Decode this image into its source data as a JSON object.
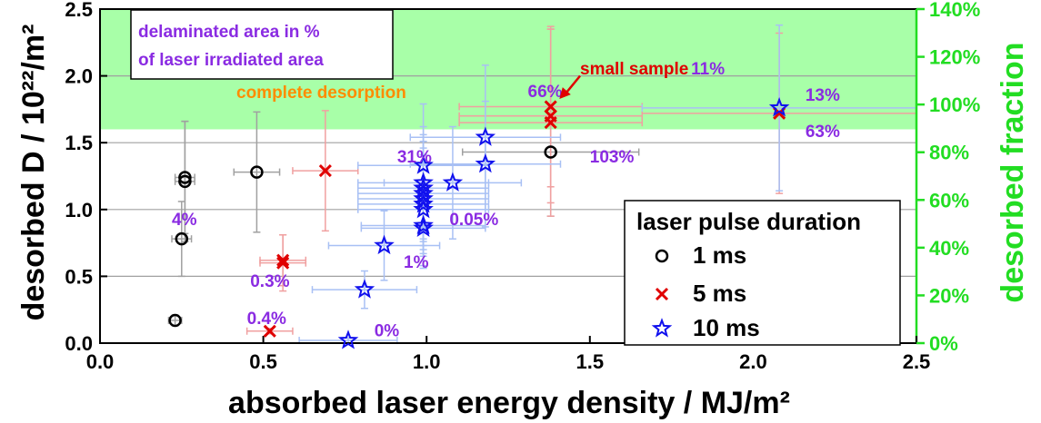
{
  "chart_data": {
    "type": "scatter",
    "xlabel": "absorbed laser energy density / MJ/m²",
    "ylabel": "desorbed D / 10²²/m²",
    "y2label": "desorbed fraction",
    "xlim": [
      0,
      2.5
    ],
    "ylim": [
      0,
      2.5
    ],
    "y2lim": [
      0,
      1.4
    ],
    "x_ticks": [
      "0.0",
      "0.5",
      "1.0",
      "1.5",
      "2.0",
      "2.5"
    ],
    "y_ticks": [
      "0.0",
      "0.5",
      "1.0",
      "1.5",
      "2.0",
      "2.5"
    ],
    "y2_ticks": [
      "0%",
      "20%",
      "40%",
      "60%",
      "80%",
      "100%",
      "120%",
      "140%"
    ],
    "grid": "horizontal",
    "shaded_band": {
      "ymin": 1.6,
      "ymax": 2.5,
      "label": "complete desorption",
      "color": "#a8ffa8"
    },
    "colors": {
      "1 ms": "#000000",
      "5 ms": "#e00000",
      "10 ms": "#1010ee",
      "fraction_axis": "#22dd22",
      "labels": "#8a2be2",
      "desorption_label": "#ff8c00"
    },
    "box_text": [
      "delaminated area in %",
      "of laser irradiated area"
    ],
    "legend": {
      "title": "laser pulse duration",
      "position": "bottom-right",
      "entries": [
        "1 ms",
        "5 ms",
        "10 ms"
      ]
    },
    "series": [
      {
        "name": "1 ms",
        "marker": "circle",
        "points": [
          {
            "x": 0.23,
            "y": 0.17,
            "xerr": 0.02,
            "yerr": 0.04
          },
          {
            "x": 0.25,
            "y": 0.78,
            "xerr": 0.03,
            "yerr": 0.28
          },
          {
            "x": 0.26,
            "y": 1.21,
            "xerr": 0.03,
            "yerr": 0.45
          },
          {
            "x": 0.26,
            "y": 1.24,
            "xerr": 0.03,
            "yerr": 0.42
          },
          {
            "x": 0.48,
            "y": 1.28,
            "xerr": 0.07,
            "yerr": 0.45
          },
          {
            "x": 1.38,
            "y": 1.43,
            "xerr": 0.27,
            "yerr": 0.48
          }
        ]
      },
      {
        "name": "5 ms",
        "marker": "x",
        "points": [
          {
            "x": 0.52,
            "y": 0.09,
            "xerr": 0.07,
            "yerr": 0.02
          },
          {
            "x": 0.56,
            "y": 0.6,
            "xerr": 0.07,
            "yerr": 0.21
          },
          {
            "x": 0.56,
            "y": 0.62,
            "xerr": 0.07,
            "yerr": 0.19
          },
          {
            "x": 0.69,
            "y": 1.29,
            "xerr": 0.1,
            "yerr": 0.45
          },
          {
            "x": 1.38,
            "y": 1.65,
            "xerr": 0.28,
            "yerr": 0.7
          },
          {
            "x": 1.38,
            "y": 1.7,
            "xerr": 0.28,
            "yerr": 0.65
          },
          {
            "x": 1.38,
            "y": 1.77,
            "xerr": 0.28,
            "yerr": 0.6
          },
          {
            "x": 2.08,
            "y": 1.72,
            "xerr": 0.42,
            "yerr": 0.6
          }
        ]
      },
      {
        "name": "10 ms",
        "marker": "star",
        "points": [
          {
            "x": 0.76,
            "y": 0.02,
            "xerr": 0.15,
            "yerr": 0.02
          },
          {
            "x": 0.81,
            "y": 0.4,
            "xerr": 0.16,
            "yerr": 0.14
          },
          {
            "x": 0.87,
            "y": 0.73,
            "xerr": 0.17,
            "yerr": 0.26
          },
          {
            "x": 0.99,
            "y": 0.86,
            "xerr": 0.19,
            "yerr": 0.3
          },
          {
            "x": 0.99,
            "y": 0.88,
            "xerr": 0.19,
            "yerr": 0.3
          },
          {
            "x": 0.99,
            "y": 1.0,
            "xerr": 0.2,
            "yerr": 0.35
          },
          {
            "x": 0.99,
            "y": 1.04,
            "xerr": 0.2,
            "yerr": 0.37
          },
          {
            "x": 0.99,
            "y": 1.08,
            "xerr": 0.2,
            "yerr": 0.38
          },
          {
            "x": 0.99,
            "y": 1.12,
            "xerr": 0.2,
            "yerr": 0.39
          },
          {
            "x": 0.99,
            "y": 1.16,
            "xerr": 0.2,
            "yerr": 0.4
          },
          {
            "x": 0.99,
            "y": 1.2,
            "xerr": 0.2,
            "yerr": 0.42
          },
          {
            "x": 0.99,
            "y": 1.33,
            "xerr": 0.2,
            "yerr": 0.46
          },
          {
            "x": 1.08,
            "y": 1.2,
            "xerr": 0.21,
            "yerr": 0.42
          },
          {
            "x": 1.18,
            "y": 1.34,
            "xerr": 0.23,
            "yerr": 0.47
          },
          {
            "x": 1.18,
            "y": 1.54,
            "xerr": 0.23,
            "yerr": 0.54
          },
          {
            "x": 2.08,
            "y": 1.76,
            "xerr": 0.42,
            "yerr": 0.62
          }
        ]
      }
    ],
    "annotations": [
      {
        "text": "4%",
        "x": 0.22,
        "y": 0.93
      },
      {
        "text": "0.3%",
        "x": 0.46,
        "y": 0.47
      },
      {
        "text": "0.4%",
        "x": 0.45,
        "y": 0.19
      },
      {
        "text": "0%",
        "x": 0.84,
        "y": 0.1
      },
      {
        "text": "1%",
        "x": 0.93,
        "y": 0.61
      },
      {
        "text": "0.05%",
        "x": 1.07,
        "y": 0.93
      },
      {
        "text": "31%",
        "x": 0.91,
        "y": 1.4
      },
      {
        "text": "103%",
        "x": 1.5,
        "y": 1.4
      },
      {
        "text": "66%",
        "x": 1.31,
        "y": 1.89
      },
      {
        "text": "small sample",
        "x": 1.47,
        "y": 2.06,
        "color": "#e00000"
      },
      {
        "text": "11%",
        "x": 1.81,
        "y": 2.06
      },
      {
        "text": "13%",
        "x": 2.16,
        "y": 1.86
      },
      {
        "text": "63%",
        "x": 2.16,
        "y": 1.59
      }
    ]
  }
}
